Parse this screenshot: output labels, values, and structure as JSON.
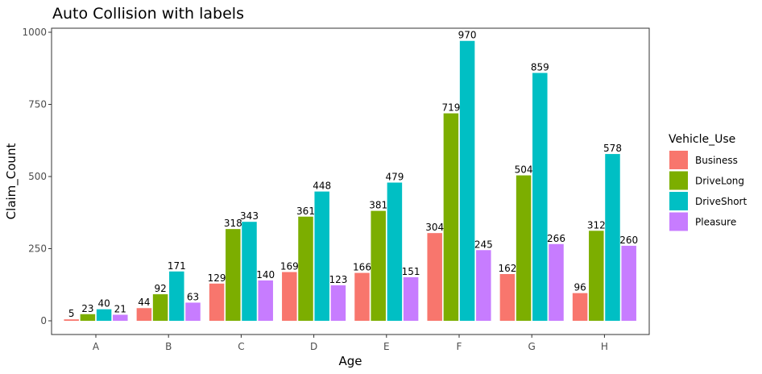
{
  "chart_data": {
    "type": "bar",
    "title": "Auto Collision with labels",
    "xlabel": "Age",
    "ylabel": "Claim_Count",
    "categories": [
      "A",
      "B",
      "C",
      "D",
      "E",
      "F",
      "G",
      "H"
    ],
    "ylim": [
      0,
      1000
    ],
    "yticks": [
      0,
      250,
      500,
      750,
      1000
    ],
    "grid": false,
    "legend_title": "Vehicle_Use",
    "legend_position": "right",
    "series": [
      {
        "name": "Business",
        "color": "#F8766D",
        "values": [
          5,
          44,
          129,
          169,
          166,
          304,
          162,
          96
        ]
      },
      {
        "name": "DriveLong",
        "color": "#7CAE00",
        "values": [
          23,
          92,
          318,
          361,
          381,
          719,
          504,
          312
        ]
      },
      {
        "name": "DriveShort",
        "color": "#00BFC4",
        "values": [
          40,
          171,
          343,
          448,
          479,
          970,
          859,
          578
        ]
      },
      {
        "name": "Pleasure",
        "color": "#C77CFF",
        "values": [
          21,
          63,
          140,
          123,
          151,
          245,
          266,
          260
        ]
      }
    ]
  }
}
